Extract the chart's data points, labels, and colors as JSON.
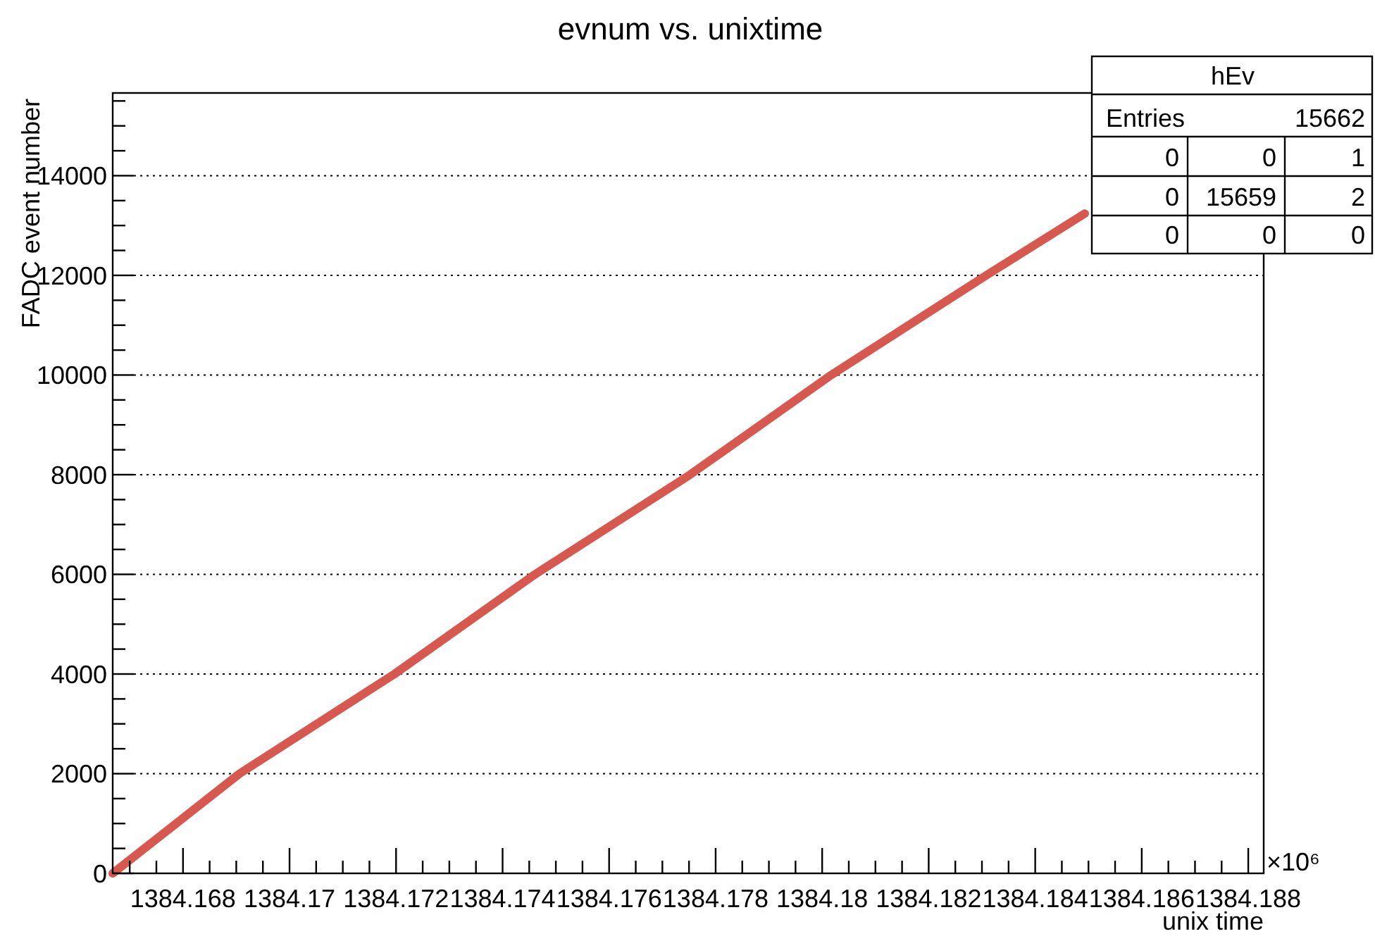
{
  "chart_data": {
    "type": "line",
    "title": "evnum vs. unixtime",
    "xlabel": "unix time",
    "ylabel": "FADC event number",
    "x": [
      1384.16668,
      1384.16906,
      1384.17197,
      1384.17461,
      1384.17752,
      1384.18017,
      1384.18308,
      1384.18493
    ],
    "series": [
      {
        "color": "#d6584e",
        "values": [
          0,
          2000,
          4000,
          6000,
          8000,
          10000,
          12000,
          13240
        ]
      }
    ],
    "xlim": [
      1384.16668,
      1384.18829
    ],
    "xticks": [
      {
        "value": 1384.167,
        "label": null
      },
      {
        "value": 1384.1675,
        "label": null
      },
      1384.168,
      {
        "value": 1384.1685,
        "label": null
      },
      {
        "value": 1384.169,
        "label": null
      },
      {
        "value": 1384.1695,
        "label": null
      },
      1384.17,
      {
        "value": 1384.1705,
        "label": null
      },
      {
        "value": 1384.171,
        "label": null
      },
      {
        "value": 1384.1715,
        "label": null
      },
      1384.172,
      {
        "value": 1384.1725,
        "label": null
      },
      {
        "value": 1384.173,
        "label": null
      },
      {
        "value": 1384.1735,
        "label": null
      },
      1384.174,
      {
        "value": 1384.1745,
        "label": null
      },
      {
        "value": 1384.175,
        "label": null
      },
      {
        "value": 1384.1755,
        "label": null
      },
      1384.176,
      {
        "value": 1384.1765,
        "label": null
      },
      {
        "value": 1384.177,
        "label": null
      },
      {
        "value": 1384.1775,
        "label": null
      },
      1384.178,
      {
        "value": 1384.1785,
        "label": null
      },
      {
        "value": 1384.179,
        "label": null
      },
      {
        "value": 1384.1795,
        "label": null
      },
      1384.18,
      {
        "value": 1384.1805,
        "label": null
      },
      {
        "value": 1384.181,
        "label": null
      },
      {
        "value": 1384.1815,
        "label": null
      },
      1384.182,
      {
        "value": 1384.1825,
        "label": null
      },
      {
        "value": 1384.183,
        "label": null
      },
      {
        "value": 1384.1835,
        "label": null
      },
      1384.184,
      {
        "value": 1384.1845,
        "label": null
      },
      {
        "value": 1384.185,
        "label": null
      },
      {
        "value": 1384.1855,
        "label": null
      },
      1384.186,
      {
        "value": 1384.1865,
        "label": null
      },
      {
        "value": 1384.187,
        "label": null
      },
      {
        "value": 1384.1875,
        "label": null
      },
      1384.188
    ],
    "ylim": [
      0,
      15660
    ],
    "yticks": [
      0,
      {
        "value": 500,
        "label": null
      },
      {
        "value": 1000,
        "label": null
      },
      {
        "value": 1500,
        "label": null
      },
      2000,
      {
        "value": 2500,
        "label": null
      },
      {
        "value": 3000,
        "label": null
      },
      {
        "value": 3500,
        "label": null
      },
      4000,
      {
        "value": 4500,
        "label": null
      },
      {
        "value": 5000,
        "label": null
      },
      {
        "value": 5500,
        "label": null
      },
      6000,
      {
        "value": 6500,
        "label": null
      },
      {
        "value": 7000,
        "label": null
      },
      {
        "value": 7500,
        "label": null
      },
      8000,
      {
        "value": 8500,
        "label": null
      },
      {
        "value": 9000,
        "label": null
      },
      {
        "value": 9500,
        "label": null
      },
      10000,
      {
        "value": 10500,
        "label": null
      },
      {
        "value": 11000,
        "label": null
      },
      {
        "value": 11500,
        "label": null
      },
      12000,
      {
        "value": 12500,
        "label": null
      },
      {
        "value": 13000,
        "label": null
      },
      {
        "value": 13500,
        "label": null
      },
      14000,
      {
        "value": 14500,
        "label": null
      },
      {
        "value": 15000,
        "label": null
      },
      {
        "value": 15500,
        "label": null
      }
    ],
    "grid": "y",
    "marker": "none",
    "line_style": "solid",
    "annotations": [
      "×10⁶",
      "hEv",
      "Entries",
      "15662",
      "0",
      "0",
      "1",
      "0",
      "15659",
      "2",
      "0",
      "0",
      "0"
    ]
  }
}
